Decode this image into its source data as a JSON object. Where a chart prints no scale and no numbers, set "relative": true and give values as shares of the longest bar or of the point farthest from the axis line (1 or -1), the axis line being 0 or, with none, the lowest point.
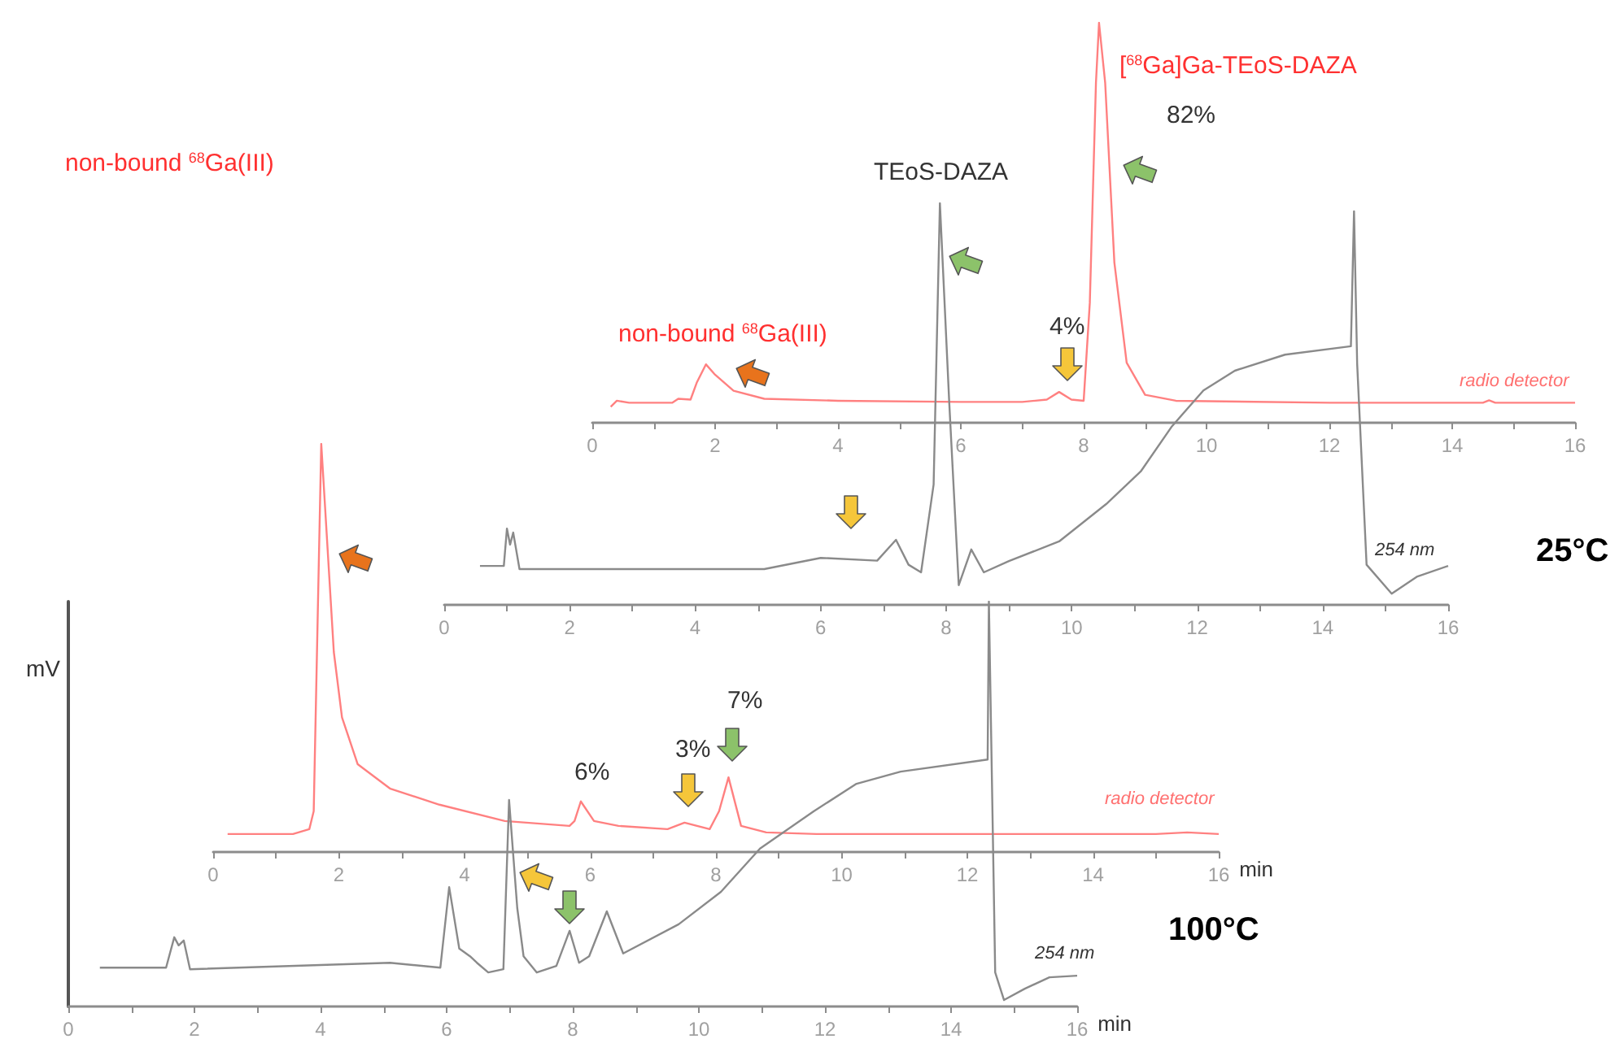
{
  "chart_data": [
    {
      "type": "line",
      "relative": true,
      "tick_labels": "x",
      "color": "#ff8080",
      "xlim": [
        0,
        16
      ],
      "xticks": [
        0,
        {
          "value": 1,
          "label": null
        },
        2,
        {
          "value": 3,
          "label": null
        },
        4,
        {
          "value": 5,
          "label": null
        },
        6,
        {
          "value": 7,
          "label": null
        },
        8,
        {
          "value": 9,
          "label": null
        },
        10,
        {
          "value": 11,
          "label": null
        },
        12,
        {
          "value": 13,
          "label": null
        },
        14,
        {
          "value": 15,
          "label": null
        },
        16
      ],
      "x": [
        0.3,
        0.4,
        0.6,
        1.3,
        1.4,
        1.6,
        1.7,
        1.85,
        2.0,
        2.3,
        2.8,
        4,
        6,
        7.0,
        7.4,
        7.6,
        7.8,
        8.0,
        8.1,
        8.2,
        8.25,
        8.35,
        8.5,
        8.7,
        9.0,
        9.5,
        12,
        14.5,
        14.6,
        14.7,
        16
      ],
      "values": [
        0.04,
        0.055,
        0.05,
        0.05,
        0.06,
        0.058,
        0.1,
        0.146,
        0.12,
        0.08,
        0.06,
        0.055,
        0.052,
        0.052,
        0.058,
        0.077,
        0.058,
        0.055,
        0.3,
        0.85,
        1,
        0.85,
        0.4,
        0.15,
        0.07,
        0.055,
        0.05,
        0.05,
        0.056,
        0.05,
        0.05
      ],
      "annotations": [
        "[$^{68}$Ga]Ga-TEoS-DAZA",
        "82%",
        "non-bound $^{68}$Ga(III)",
        "4%",
        "radio detector"
      ]
    },
    {
      "type": "line",
      "relative": true,
      "tick_labels": "x",
      "color": "#8a8a8a",
      "xlim": [
        0,
        16
      ],
      "xticks": [
        0,
        {
          "value": 1,
          "label": null
        },
        2,
        {
          "value": 3,
          "label": null
        },
        4,
        {
          "value": 5,
          "label": null
        },
        6,
        {
          "value": 7,
          "label": null
        },
        8,
        {
          "value": 9,
          "label": null
        },
        10,
        {
          "value": 11,
          "label": null
        },
        12,
        {
          "value": 13,
          "label": null
        },
        14,
        {
          "value": 15,
          "label": null
        },
        16
      ],
      "x": [
        0.57,
        0.95,
        1.0,
        1.05,
        1.1,
        1.2,
        2,
        5.1,
        6.0,
        6.9,
        7.2,
        7.4,
        7.6,
        7.8,
        7.9,
        8.05,
        8.2,
        8.4,
        8.6,
        9.0,
        9.8,
        10.55,
        11.1,
        11.6,
        12.1,
        12.6,
        13.4,
        14.45,
        14.5,
        14.55,
        14.7,
        15.1,
        15.5,
        16
      ],
      "values": [
        0.097,
        0.097,
        0.19,
        0.15,
        0.18,
        0.089,
        0.089,
        0.089,
        0.117,
        0.11,
        0.162,
        0.1,
        0.081,
        0.3,
        1,
        0.5,
        0.049,
        0.138,
        0.081,
        0.109,
        0.158,
        0.251,
        0.332,
        0.445,
        0.534,
        0.583,
        0.623,
        0.644,
        0.98,
        0.6,
        0.1,
        0.028,
        0.07,
        0.097
      ],
      "annotations": [
        "TEoS-DAZA",
        "254 nm",
        "25°C"
      ]
    },
    {
      "type": "line",
      "relative": true,
      "tick_labels": "x",
      "color": "#ff8080",
      "xlabel": "min",
      "xlim": [
        0,
        16
      ],
      "xticks": [
        0,
        {
          "value": 1,
          "label": null
        },
        2,
        {
          "value": 3,
          "label": null
        },
        4,
        {
          "value": 5,
          "label": null
        },
        6,
        {
          "value": 7,
          "label": null
        },
        8,
        {
          "value": 9,
          "label": null
        },
        10,
        {
          "value": 11,
          "label": null
        },
        12,
        {
          "value": 13,
          "label": null
        },
        14,
        {
          "value": 15,
          "label": null
        },
        16
      ],
      "x": [
        0.23,
        1.27,
        1.53,
        1.6,
        1.72,
        1.92,
        2.05,
        2.3,
        2.82,
        3.6,
        4.64,
        5.67,
        5.75,
        5.85,
        6.06,
        6.45,
        7.23,
        7.5,
        7.9,
        8.05,
        8.2,
        8.4,
        8.8,
        9.6,
        15,
        15.5,
        16
      ],
      "values": [
        0.044,
        0.044,
        0.056,
        0.1,
        1,
        0.49,
        0.33,
        0.215,
        0.155,
        0.116,
        0.076,
        0.064,
        0.076,
        0.124,
        0.076,
        0.064,
        0.056,
        0.072,
        0.056,
        0.1,
        0.183,
        0.064,
        0.048,
        0.044,
        0.044,
        0.048,
        0.044
      ],
      "annotations": [
        "non-bound $^{68}$Ga(III)",
        "6%",
        "3%",
        "7%",
        "radio detector"
      ]
    },
    {
      "type": "line",
      "relative": true,
      "tick_labels": "x",
      "color": "#8a8a8a",
      "xlabel": "min",
      "ylabel": "mV",
      "xlim": [
        0,
        16
      ],
      "xticks": [
        0,
        {
          "value": 1,
          "label": null
        },
        2,
        {
          "value": 3,
          "label": null
        },
        4,
        {
          "value": 5,
          "label": null
        },
        6,
        {
          "value": 7,
          "label": null
        },
        8,
        {
          "value": 9,
          "label": null
        },
        10,
        {
          "value": 11,
          "label": null
        },
        12,
        {
          "value": 13,
          "label": null
        },
        14,
        {
          "value": 15,
          "label": null
        },
        16
      ],
      "x": [
        0.5,
        1.55,
        1.68,
        1.75,
        1.83,
        1.93,
        5.1,
        5.9,
        6.04,
        6.2,
        6.37,
        6.48,
        6.66,
        6.9,
        6.99,
        7.12,
        7.22,
        7.43,
        7.74,
        7.95,
        8.1,
        8.26,
        8.54,
        8.8,
        9.68,
        10.35,
        10.97,
        11.82,
        12.5,
        13.2,
        14.58,
        14.6,
        14.7,
        14.84,
        15.17,
        15.56,
        16
      ],
      "values": [
        0.096,
        0.096,
        0.171,
        0.151,
        0.163,
        0.092,
        0.108,
        0.096,
        0.295,
        0.143,
        0.124,
        0.108,
        0.084,
        0.092,
        0.51,
        0.243,
        0.124,
        0.084,
        0.1,
        0.187,
        0.108,
        0.124,
        0.235,
        0.131,
        0.203,
        0.283,
        0.39,
        0.482,
        0.55,
        0.58,
        0.61,
        1,
        0.084,
        0.016,
        0.044,
        0.072,
        0.076
      ],
      "annotations": [
        "254 nm",
        "100°C"
      ]
    }
  ]
}
